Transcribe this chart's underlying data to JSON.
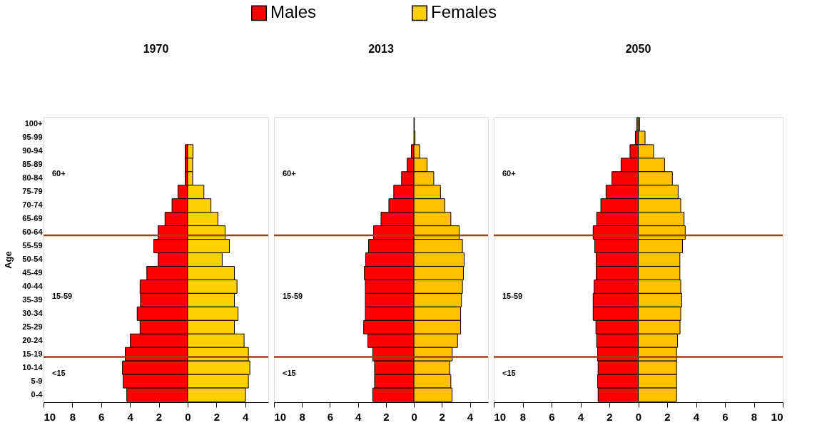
{
  "chart_data": [
    {
      "type": "bar",
      "orientation": "horizontal",
      "title": "1970",
      "ylabel": "Age",
      "legend": "top",
      "categories": [
        "100+",
        "95-99",
        "90-94",
        "85-89",
        "80-84",
        "75-79",
        "70-74",
        "65-69",
        "60-64",
        "55-59",
        "50-54",
        "45-49",
        "40-44",
        "35-39",
        "30-34",
        "25-29",
        "20-24",
        "15-19",
        "10-14",
        "5-9",
        "0-4"
      ],
      "series": [
        {
          "name": "Males",
          "color": "#ff0000",
          "values": [
            null,
            null,
            -0.17,
            -0.17,
            -0.17,
            -0.67,
            -1.08,
            -1.57,
            -2.05,
            -2.35,
            -2.05,
            -2.83,
            -3.3,
            -3.27,
            -3.5,
            -3.3,
            -3.98,
            -4.33,
            -4.52,
            -4.47,
            -4.22
          ]
        },
        {
          "name": "Females",
          "color": "#ffd000",
          "values": [
            null,
            null,
            0.37,
            0.35,
            0.35,
            1.13,
            1.62,
            2.1,
            2.6,
            2.9,
            2.4,
            3.25,
            3.43,
            3.25,
            3.5,
            3.25,
            3.92,
            4.22,
            4.32,
            4.22,
            4.02
          ]
        }
      ],
      "xlim": [
        -10,
        5.6
      ],
      "xticks": [
        {
          "value": -10,
          "label": "10"
        },
        {
          "value": -8,
          "label": "8"
        },
        {
          "value": -6,
          "label": "6"
        },
        {
          "value": -4,
          "label": "4"
        },
        {
          "value": -2,
          "label": "2"
        },
        0,
        2,
        4
      ],
      "ref_lines": [
        {
          "axis": "y",
          "value": "60-64",
          "color": "#a0400f"
        },
        {
          "axis": "y",
          "value": "15-19",
          "color": "#a0400f"
        }
      ],
      "stacked": true,
      "annotations": [
        "60+",
        "15-59",
        "<15"
      ]
    },
    {
      "type": "bar",
      "orientation": "horizontal",
      "title": "2013",
      "tick_labels": "x",
      "stacked": true,
      "categories": [
        "100+",
        "95-99",
        "90-94",
        "85-89",
        "80-84",
        "75-79",
        "70-74",
        "65-69",
        "60-64",
        "55-59",
        "50-54",
        "45-49",
        "40-44",
        "35-39",
        "30-34",
        "25-29",
        "20-24",
        "15-19",
        "10-14",
        "5-9",
        "0-4"
      ],
      "series": [
        {
          "color": "#ff0000",
          "values": [
            null,
            null,
            -0.18,
            -0.48,
            -0.88,
            -1.44,
            -1.79,
            -2.35,
            -2.88,
            -3.24,
            -3.45,
            -3.54,
            -3.47,
            -3.47,
            -3.47,
            -3.59,
            -3.29,
            -2.94,
            -2.81,
            -2.81,
            -2.94
          ]
        },
        {
          "color": "#ffc000",
          "values": [
            0.03,
            0.08,
            0.41,
            0.94,
            1.42,
            1.9,
            2.21,
            2.64,
            3.24,
            3.47,
            3.59,
            3.54,
            3.47,
            3.4,
            3.34,
            3.34,
            3.12,
            2.74,
            2.56,
            2.64,
            2.73
          ]
        }
      ],
      "xlim": [
        -10,
        5.3
      ],
      "xticks": [
        {
          "value": -10,
          "label": "10"
        },
        {
          "value": -8,
          "label": "8"
        },
        {
          "value": -6,
          "label": "6"
        },
        {
          "value": -4,
          "label": "4"
        },
        {
          "value": -2,
          "label": "2"
        },
        0,
        2,
        4
      ],
      "ref_lines": [
        {
          "axis": "y",
          "value": "60-64",
          "color": "#a0400f"
        },
        {
          "axis": "y",
          "value": "15-19",
          "color": "#a0400f"
        }
      ],
      "annotations": [
        "60+",
        "15-59",
        "<15"
      ]
    },
    {
      "type": "bar",
      "orientation": "horizontal",
      "title": "2050",
      "tick_labels": "x",
      "stacked": true,
      "categories": [
        "100+",
        "95-99",
        "90-94",
        "85-89",
        "80-84",
        "75-79",
        "70-74",
        "65-69",
        "60-64",
        "55-59",
        "50-54",
        "45-49",
        "40-44",
        "35-39",
        "30-34",
        "25-29",
        "20-24",
        "15-19",
        "10-14",
        "5-9",
        "0-4"
      ],
      "series": [
        {
          "color": "#ff0000",
          "values": [
            -0.1,
            -0.2,
            -0.57,
            -1.19,
            -1.82,
            -2.23,
            -2.59,
            -2.88,
            -3.12,
            -3.01,
            -2.91,
            -2.91,
            -3.06,
            -3.12,
            -3.12,
            -2.93,
            -2.88,
            -2.81,
            -2.78,
            -2.81,
            -2.78
          ]
        },
        {
          "color": "#ffc000",
          "values": [
            0.1,
            0.47,
            1.06,
            1.82,
            2.36,
            2.76,
            2.94,
            3.17,
            3.25,
            3.06,
            2.88,
            2.88,
            2.94,
            3.01,
            2.94,
            2.89,
            2.72,
            2.65,
            2.65,
            2.65,
            2.65
          ]
        }
      ],
      "xlim": [
        -10,
        10
      ],
      "xticks": [
        {
          "value": -10,
          "label": "10"
        },
        {
          "value": -8,
          "label": "8"
        },
        {
          "value": -6,
          "label": "6"
        },
        {
          "value": -4,
          "label": "4"
        },
        {
          "value": -2,
          "label": "2"
        },
        0,
        2,
        4,
        6,
        8,
        10
      ],
      "ref_lines": [
        {
          "axis": "y",
          "value": "60-64",
          "color": "#a0400f"
        },
        {
          "axis": "y",
          "value": "15-19",
          "color": "#a0400f"
        }
      ],
      "annotations": [
        "60+",
        "15-59",
        "<15"
      ]
    }
  ]
}
